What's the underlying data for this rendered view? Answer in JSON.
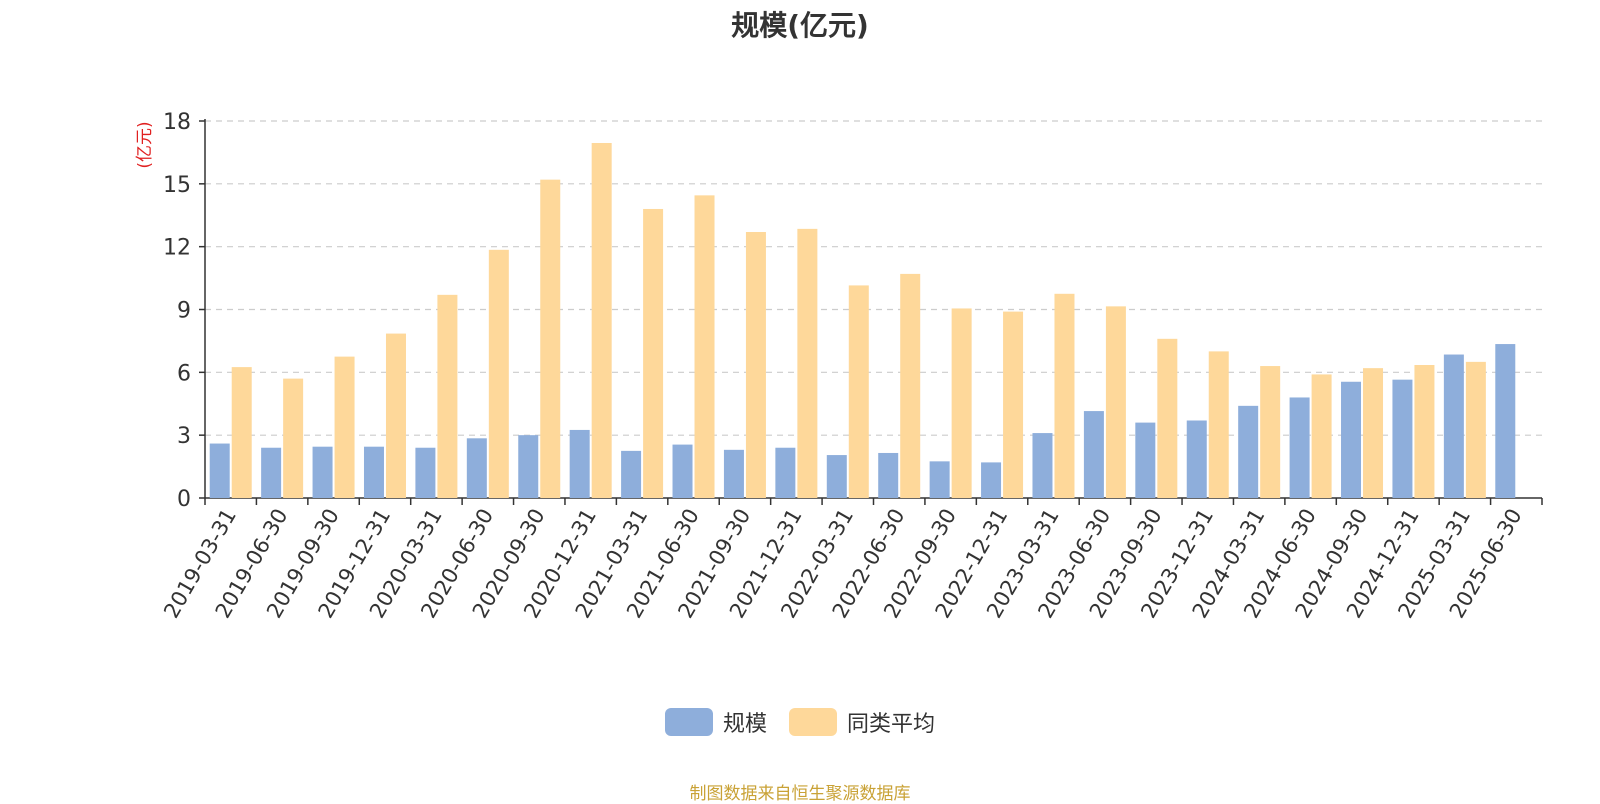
{
  "chart_data": {
    "type": "bar",
    "title": "规模(亿元)",
    "ylabel": "(亿元)",
    "xlabel": "",
    "ylim": [
      0,
      18
    ],
    "yticks": [
      0,
      3,
      6,
      9,
      12,
      15,
      18
    ],
    "grid": true,
    "legend_position": "bottom",
    "categories": [
      "2019-03-31",
      "2019-06-30",
      "2019-09-30",
      "2019-12-31",
      "2020-03-31",
      "2020-06-30",
      "2020-09-30",
      "2020-12-31",
      "2021-03-31",
      "2021-06-30",
      "2021-09-30",
      "2021-12-31",
      "2022-03-31",
      "2022-06-30",
      "2022-09-30",
      "2022-12-31",
      "2023-03-31",
      "2023-06-30",
      "2023-09-30",
      "2023-12-31",
      "2024-03-31",
      "2024-06-30",
      "2024-09-30",
      "2024-12-31",
      "2025-03-31",
      "2025-06-30"
    ],
    "series": [
      {
        "name": "规模",
        "color": "#8eaedb",
        "values": [
          2.6,
          2.4,
          2.45,
          2.45,
          2.4,
          2.85,
          3.0,
          3.25,
          2.25,
          2.55,
          2.3,
          2.4,
          2.05,
          2.15,
          1.75,
          1.7,
          3.1,
          4.15,
          3.6,
          3.7,
          4.4,
          4.8,
          5.55,
          5.65,
          6.85,
          7.35
        ]
      },
      {
        "name": "同类平均",
        "color": "#fed89a",
        "values": [
          6.25,
          5.7,
          6.75,
          7.85,
          9.7,
          11.85,
          15.2,
          16.95,
          13.8,
          14.45,
          12.7,
          12.85,
          10.15,
          10.7,
          9.05,
          8.9,
          9.75,
          9.15,
          7.6,
          7.0,
          6.3,
          5.9,
          6.2,
          6.35,
          6.5,
          null
        ]
      }
    ]
  },
  "legend": {
    "items": [
      {
        "label": "规模",
        "color": "#8eaedb"
      },
      {
        "label": "同类平均",
        "color": "#fed89a"
      }
    ]
  },
  "footer": {
    "source": "制图数据来自恒生聚源数据库"
  }
}
